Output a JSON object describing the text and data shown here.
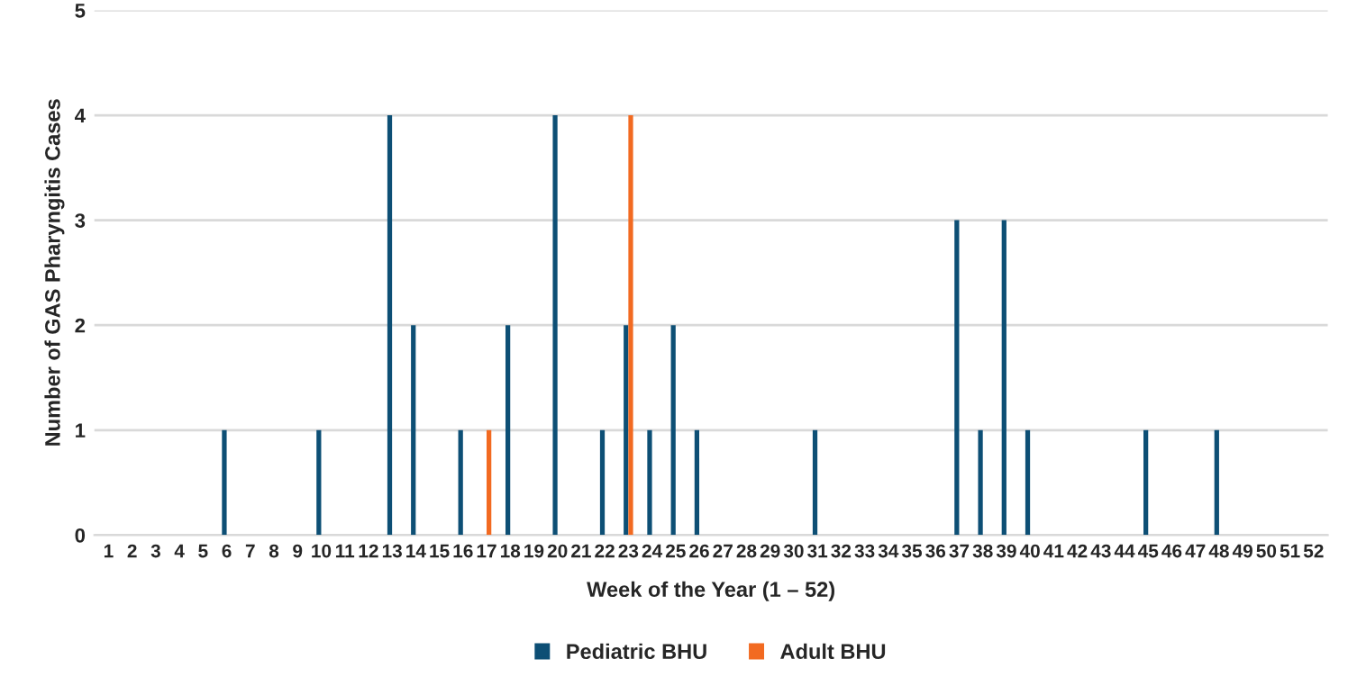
{
  "chart_data": {
    "type": "bar",
    "xlabel": "Week of the Year (1 – 52)",
    "ylabel": "Number of GAS Pharyngitis Cases",
    "categories": [
      "1",
      "2",
      "3",
      "4",
      "5",
      "6",
      "7",
      "8",
      "9",
      "10",
      "11",
      "12",
      "13",
      "14",
      "15",
      "16",
      "17",
      "18",
      "19",
      "20",
      "21",
      "22",
      "23",
      "24",
      "25",
      "26",
      "27",
      "28",
      "29",
      "30",
      "31",
      "32",
      "33",
      "34",
      "35",
      "36",
      "37",
      "38",
      "39",
      "40",
      "41",
      "42",
      "43",
      "44",
      "45",
      "46",
      "47",
      "48",
      "49",
      "50",
      "51",
      "52"
    ],
    "series": [
      {
        "name": "Pediatric BHU",
        "color": "#0d4f75",
        "values": [
          0,
          0,
          0,
          0,
          0,
          1,
          0,
          0,
          0,
          1,
          0,
          0,
          4,
          2,
          0,
          1,
          0,
          2,
          0,
          4,
          0,
          1,
          2,
          1,
          2,
          1,
          0,
          0,
          0,
          0,
          1,
          0,
          0,
          0,
          0,
          0,
          3,
          1,
          3,
          1,
          0,
          0,
          0,
          0,
          1,
          0,
          0,
          1,
          0,
          0,
          0,
          0
        ]
      },
      {
        "name": "Adult BHU",
        "color": "#f26a21",
        "values": [
          0,
          0,
          0,
          0,
          0,
          0,
          0,
          0,
          0,
          0,
          0,
          0,
          0,
          0,
          0,
          0,
          1,
          0,
          0,
          0,
          0,
          0,
          4,
          0,
          0,
          0,
          0,
          0,
          0,
          0,
          0,
          0,
          0,
          0,
          0,
          0,
          0,
          0,
          0,
          0,
          0,
          0,
          0,
          0,
          0,
          0,
          0,
          0,
          0,
          0,
          0,
          0
        ]
      }
    ],
    "ylim": [
      0,
      5
    ],
    "yticks": [
      0,
      1,
      2,
      3,
      4,
      5
    ],
    "grid": "y",
    "legend": "bottom"
  }
}
